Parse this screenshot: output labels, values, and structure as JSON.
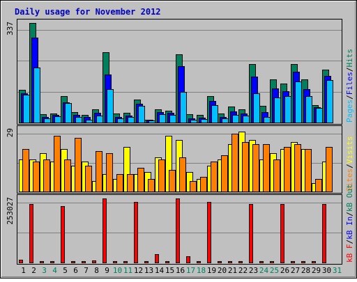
{
  "title": "Daily usage for November 2012",
  "colors": {
    "background": "#c0c0c0",
    "frame": "#000000",
    "title": "#0000c0",
    "hits": "#00805c",
    "files": "#0000ff",
    "pages": "#00c0ff",
    "visits": "#ffff00",
    "sites": "#ff8000",
    "kbin": "#0000ff",
    "kbout": "#00805c",
    "kbf": "#ff0000",
    "weekend": "#00805c",
    "weekday": "#000000"
  },
  "chart_data": [
    {
      "type": "bar",
      "panel": "hits-files-pages",
      "y_max_label": "337",
      "ylim": [
        0,
        337
      ],
      "right_labels": [
        {
          "text": "Pages",
          "color": "#00c0ff"
        },
        {
          "text": "/",
          "color": "#000000"
        },
        {
          "text": "Files",
          "color": "#0000ff"
        },
        {
          "text": "/",
          "color": "#000000"
        },
        {
          "text": "Hits",
          "color": "#00805c"
        }
      ],
      "categories": [
        "1",
        "2",
        "3",
        "4",
        "5",
        "6",
        "7",
        "8",
        "9",
        "10",
        "11",
        "12",
        "13",
        "14",
        "15",
        "16",
        "17",
        "18",
        "19",
        "20",
        "21",
        "22",
        "23",
        "24",
        "25",
        "26",
        "27",
        "28",
        "29",
        "30",
        "31"
      ],
      "series": [
        {
          "name": "Hits",
          "color": "#00805c",
          "values": [
            111,
            337,
            28,
            31,
            90,
            36,
            26,
            45,
            238,
            31,
            33,
            78,
            10,
            45,
            40,
            231,
            28,
            26,
            90,
            31,
            54,
            44,
            199,
            56,
            146,
            133,
            197,
            147,
            60,
            180,
            0
          ]
        },
        {
          "name": "Files",
          "color": "#0000ff",
          "values": [
            98,
            287,
            18,
            25,
            69,
            26,
            18,
            33,
            163,
            18,
            23,
            64,
            9,
            36,
            33,
            190,
            14,
            17,
            73,
            18,
            38,
            30,
            155,
            36,
            116,
            107,
            171,
            112,
            52,
            158,
            0
          ]
        },
        {
          "name": "Pages",
          "color": "#00c0ff",
          "values": [
            95,
            185,
            14,
            22,
            65,
            20,
            9,
            24,
            113,
            14,
            19,
            56,
            7,
            28,
            26,
            103,
            9,
            12,
            58,
            14,
            26,
            23,
            99,
            20,
            84,
            90,
            140,
            89,
            50,
            144,
            0
          ]
        }
      ]
    },
    {
      "type": "bar",
      "panel": "visits-sites",
      "y_max_label": "29",
      "ylim": [
        0,
        29
      ],
      "right_labels": [
        {
          "text": "Sites",
          "color": "#ff8000"
        },
        {
          "text": "/",
          "color": "#000000"
        },
        {
          "text": "Visits",
          "color": "#ffff00"
        }
      ],
      "categories": [
        "1",
        "2",
        "3",
        "4",
        "5",
        "6",
        "7",
        "8",
        "9",
        "10",
        "11",
        "12",
        "13",
        "14",
        "15",
        "16",
        "17",
        "18",
        "19",
        "20",
        "21",
        "22",
        "23",
        "24",
        "25",
        "26",
        "27",
        "28",
        "29",
        "30",
        "31"
      ],
      "series": [
        {
          "name": "Visits",
          "color": "#ffff00",
          "values": [
            15,
            15,
            18,
            14,
            20,
            12,
            14,
            5,
            8,
            6,
            21,
            8,
            9,
            16,
            26,
            24,
            9,
            6,
            12,
            15,
            22,
            28,
            24,
            15,
            18,
            20,
            23,
            20,
            4,
            14,
            0
          ]
        },
        {
          "name": "Sites",
          "color": "#ff8000",
          "values": [
            20,
            14,
            15,
            26,
            15,
            25,
            12,
            19,
            18,
            8,
            8,
            11,
            6,
            15,
            10,
            16,
            5,
            7,
            14,
            17,
            27,
            23,
            22,
            22,
            15,
            21,
            22,
            20,
            6,
            21,
            0
          ]
        }
      ]
    },
    {
      "type": "bar",
      "panel": "kbin-kbout-kbf",
      "y_max_label": "253027",
      "ylim": [
        0,
        253027
      ],
      "right_labels": [
        {
          "text": "kB F",
          "color": "#ff0000"
        },
        {
          "text": "/",
          "color": "#000000"
        },
        {
          "text": "kB In",
          "color": "#0000ff"
        },
        {
          "text": "/",
          "color": "#000000"
        },
        {
          "text": "kB Out",
          "color": "#00805c"
        }
      ],
      "categories": [
        "1",
        "2",
        "3",
        "4",
        "5",
        "6",
        "7",
        "8",
        "9",
        "10",
        "11",
        "12",
        "13",
        "14",
        "15",
        "16",
        "17",
        "18",
        "19",
        "20",
        "21",
        "22",
        "23",
        "24",
        "25",
        "26",
        "27",
        "28",
        "29",
        "30",
        "31"
      ],
      "series": [
        {
          "name": "kB F",
          "color": "#ff0000",
          "values": [
            12000,
            230000,
            3000,
            3000,
            222000,
            4000,
            2000,
            7000,
            253027,
            2000,
            2000,
            238000,
            2000,
            32000,
            4000,
            253027,
            26000,
            3000,
            238000,
            4000,
            6000,
            4000,
            230000,
            4000,
            3000,
            230000,
            6000,
            4000,
            2000,
            230000,
            0
          ]
        }
      ]
    }
  ],
  "x_axis": {
    "days": [
      "1",
      "2",
      "3",
      "4",
      "5",
      "6",
      "7",
      "8",
      "9",
      "10",
      "11",
      "12",
      "13",
      "14",
      "15",
      "16",
      "17",
      "18",
      "19",
      "20",
      "21",
      "22",
      "23",
      "24",
      "25",
      "26",
      "27",
      "28",
      "29",
      "30",
      "31"
    ],
    "weekend": [
      3,
      4,
      10,
      11,
      17,
      18,
      24,
      25,
      31
    ]
  }
}
